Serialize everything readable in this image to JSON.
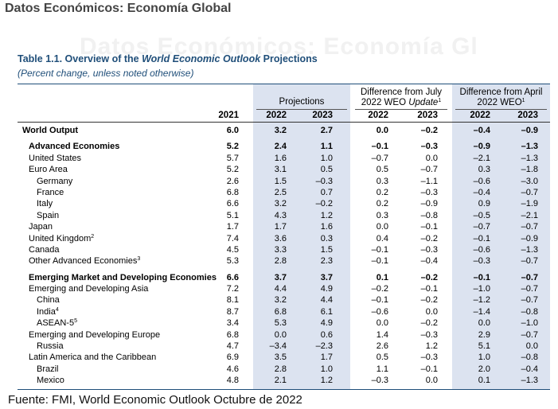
{
  "page_heading": "Datos Económicos: Economía Global",
  "watermark": "Datos Económicos: Economía Gl",
  "table": {
    "title_prefix": "Table 1.1. Overview of the ",
    "title_italic": "World Economic Outlook",
    "title_suffix": " Projections",
    "subtitle": "(Percent change, unless noted otherwise)",
    "group_projections": "Projections",
    "group_july_line1": "Difference from July",
    "group_july_line2": "2022 WEO ",
    "group_july_update": "Update",
    "group_july_sup": "1",
    "group_april_line1": "Difference from April",
    "group_april_line2": "2022 WEO",
    "group_april_sup": "1",
    "years": [
      "2021",
      "2022",
      "2023",
      "2022",
      "2023",
      "2022",
      "2023"
    ],
    "rows": [
      {
        "label": "World Output",
        "sup": "",
        "values": [
          "6.0",
          "3.2",
          "2.7",
          "0.0",
          "–0.2",
          "–0.4",
          "–0.9"
        ]
      },
      {
        "label": "Advanced Economies",
        "sup": "",
        "values": [
          "5.2",
          "2.4",
          "1.1",
          "–0.1",
          "–0.3",
          "–0.9",
          "–1.3"
        ]
      },
      {
        "label": "United States",
        "sup": "",
        "values": [
          "5.7",
          "1.6",
          "1.0",
          "–0.7",
          "0.0",
          "–2.1",
          "–1.3"
        ]
      },
      {
        "label": "Euro Area",
        "sup": "",
        "values": [
          "5.2",
          "3.1",
          "0.5",
          "0.5",
          "–0.7",
          "0.3",
          "–1.8"
        ]
      },
      {
        "label": "Germany",
        "sup": "",
        "values": [
          "2.6",
          "1.5",
          "–0.3",
          "0.3",
          "–1.1",
          "–0.6",
          "–3.0"
        ]
      },
      {
        "label": "France",
        "sup": "",
        "values": [
          "6.8",
          "2.5",
          "0.7",
          "0.2",
          "–0.3",
          "–0.4",
          "–0.7"
        ]
      },
      {
        "label": "Italy",
        "sup": "",
        "values": [
          "6.6",
          "3.2",
          "–0.2",
          "0.2",
          "–0.9",
          "0.9",
          "–1.9"
        ]
      },
      {
        "label": "Spain",
        "sup": "",
        "values": [
          "5.1",
          "4.3",
          "1.2",
          "0.3",
          "–0.8",
          "–0.5",
          "–2.1"
        ]
      },
      {
        "label": "Japan",
        "sup": "",
        "values": [
          "1.7",
          "1.7",
          "1.6",
          "0.0",
          "–0.1",
          "–0.7",
          "–0.7"
        ]
      },
      {
        "label": "United Kingdom",
        "sup": "2",
        "values": [
          "7.4",
          "3.6",
          "0.3",
          "0.4",
          "–0.2",
          "–0.1",
          "–0.9"
        ]
      },
      {
        "label": "Canada",
        "sup": "",
        "values": [
          "4.5",
          "3.3",
          "1.5",
          "–0.1",
          "–0.3",
          "–0.6",
          "–1.3"
        ]
      },
      {
        "label": "Other Advanced Economies",
        "sup": "3",
        "values": [
          "5.3",
          "2.8",
          "2.3",
          "–0.1",
          "–0.4",
          "–0.3",
          "–0.7"
        ]
      },
      {
        "label": "Emerging Market and Developing Economies",
        "sup": "",
        "values": [
          "6.6",
          "3.7",
          "3.7",
          "0.1",
          "–0.2",
          "–0.1",
          "–0.7"
        ]
      },
      {
        "label": "Emerging and Developing Asia",
        "sup": "",
        "values": [
          "7.2",
          "4.4",
          "4.9",
          "–0.2",
          "–0.1",
          "–1.0",
          "–0.7"
        ]
      },
      {
        "label": "China",
        "sup": "",
        "values": [
          "8.1",
          "3.2",
          "4.4",
          "–0.1",
          "–0.2",
          "–1.2",
          "–0.7"
        ]
      },
      {
        "label": "India",
        "sup": "4",
        "values": [
          "8.7",
          "6.8",
          "6.1",
          "–0.6",
          "0.0",
          "–1.4",
          "–0.8"
        ]
      },
      {
        "label": "ASEAN-5",
        "sup": "5",
        "values": [
          "3.4",
          "5.3",
          "4.9",
          "0.0",
          "–0.2",
          "0.0",
          "–1.0"
        ]
      },
      {
        "label": "Emerging and Developing Europe",
        "sup": "",
        "values": [
          "6.8",
          "0.0",
          "0.6",
          "1.4",
          "–0.3",
          "2.9",
          "–0.7"
        ]
      },
      {
        "label": "Russia",
        "sup": "",
        "values": [
          "4.7",
          "–3.4",
          "–2.3",
          "2.6",
          "1.2",
          "5.1",
          "0.0"
        ]
      },
      {
        "label": "Latin America and the Caribbean",
        "sup": "",
        "values": [
          "6.9",
          "3.5",
          "1.7",
          "0.5",
          "–0.3",
          "1.0",
          "–0.8"
        ]
      },
      {
        "label": "Brazil",
        "sup": "",
        "values": [
          "4.6",
          "2.8",
          "1.0",
          "1.1",
          "–0.1",
          "2.0",
          "–0.4"
        ]
      },
      {
        "label": "Mexico",
        "sup": "",
        "values": [
          "4.8",
          "2.1",
          "1.2",
          "–0.3",
          "0.0",
          "0.1",
          "–1.3"
        ]
      }
    ]
  },
  "source": "Fuente: FMI, World Economic Outlook Octubre de 2022"
}
